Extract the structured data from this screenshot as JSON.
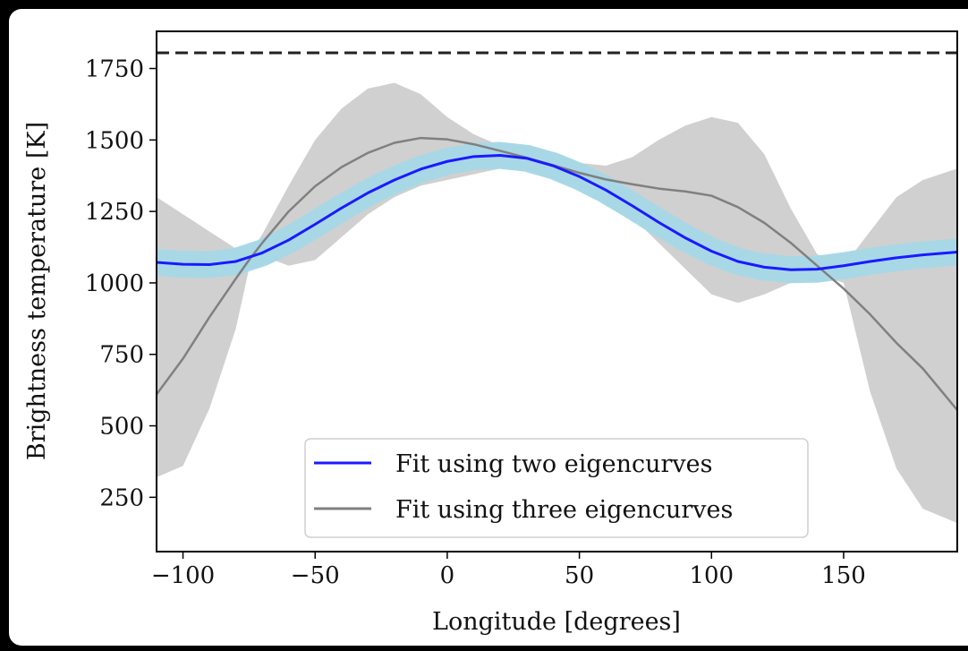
{
  "chart_data": {
    "type": "line",
    "xlabel": "Longitude [degrees]",
    "ylabel": "Brightness temperature [K]",
    "xlim": [
      -110,
      193
    ],
    "ylim": [
      60,
      1880
    ],
    "xticks": [
      -100,
      -50,
      0,
      50,
      100,
      150
    ],
    "xtick_labels": [
      "−100",
      "−50",
      "0",
      "50",
      "100",
      "150"
    ],
    "yticks": [
      250,
      500,
      750,
      1000,
      1250,
      1500,
      1750
    ],
    "ytick_labels": [
      "250",
      "500",
      "750",
      "1000",
      "1250",
      "1500",
      "1750"
    ],
    "grid": false,
    "legend_position": "lower-center",
    "reference_line": {
      "y": 1805,
      "style": "dashed",
      "color": "#222222"
    },
    "series": [
      {
        "name": "Fit using two eigencurves",
        "color": "#1a1aff",
        "band_color": "#a8d8e6",
        "x": [
          -110,
          -100,
          -90,
          -80,
          -70,
          -60,
          -50,
          -40,
          -30,
          -20,
          -10,
          0,
          10,
          20,
          30,
          40,
          50,
          60,
          70,
          80,
          90,
          100,
          110,
          120,
          130,
          140,
          150,
          160,
          170,
          180,
          193
        ],
        "y": [
          1072,
          1065,
          1064,
          1075,
          1105,
          1150,
          1205,
          1262,
          1315,
          1360,
          1398,
          1425,
          1442,
          1446,
          1436,
          1410,
          1372,
          1325,
          1270,
          1212,
          1158,
          1111,
          1075,
          1055,
          1046,
          1048,
          1060,
          1075,
          1088,
          1098,
          1108
        ]
      },
      {
        "name": "Fit using three eigencurves",
        "color": "#808080",
        "x": [
          -110,
          -100,
          -90,
          -80,
          -75,
          -70,
          -60,
          -50,
          -40,
          -30,
          -20,
          -10,
          0,
          10,
          20,
          30,
          40,
          50,
          60,
          70,
          80,
          90,
          100,
          110,
          120,
          130,
          140,
          150,
          160,
          170,
          180,
          193
        ],
        "y": [
          610,
          735,
          880,
          1015,
          1080,
          1140,
          1250,
          1338,
          1405,
          1455,
          1490,
          1507,
          1502,
          1485,
          1462,
          1438,
          1412,
          1385,
          1362,
          1345,
          1330,
          1320,
          1305,
          1265,
          1210,
          1140,
          1060,
          980,
          890,
          790,
          700,
          555
        ]
      }
    ],
    "posterior_envelope": {
      "color": "#d0d0d0",
      "x": [
        -110,
        -100,
        -90,
        -80,
        -75,
        -70,
        -60,
        -50,
        -40,
        -30,
        -20,
        -10,
        0,
        10,
        20,
        30,
        40,
        50,
        60,
        70,
        80,
        90,
        100,
        110,
        120,
        130,
        140,
        150,
        160,
        170,
        180,
        193
      ],
      "upper": [
        1300,
        1240,
        1180,
        1120,
        1100,
        1170,
        1340,
        1500,
        1610,
        1680,
        1700,
        1660,
        1580,
        1520,
        1480,
        1460,
        1440,
        1420,
        1410,
        1440,
        1500,
        1550,
        1580,
        1560,
        1450,
        1260,
        1100,
        1060,
        1180,
        1300,
        1360,
        1400
      ],
      "lower": [
        320,
        360,
        560,
        840,
        1050,
        1095,
        1060,
        1080,
        1160,
        1240,
        1300,
        1340,
        1360,
        1380,
        1400,
        1395,
        1375,
        1345,
        1300,
        1230,
        1140,
        1050,
        960,
        930,
        960,
        1000,
        1030,
        1000,
        620,
        350,
        210,
        160
      ]
    }
  }
}
